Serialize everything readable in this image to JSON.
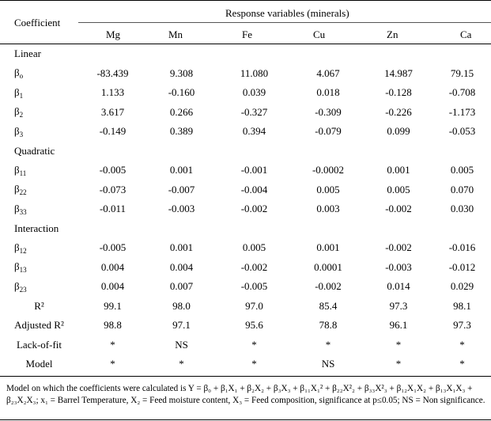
{
  "header": {
    "coefficient": "Coefficient",
    "response_title": "Response variables (minerals)",
    "columns": [
      "Mg",
      "Mn",
      "Fe",
      "Cu",
      "Zn",
      "Ca"
    ]
  },
  "rows": [
    {
      "kind": "section",
      "label": "Linear"
    },
    {
      "kind": "beta",
      "sym": "β",
      "sub": "o",
      "values": [
        "-83.439",
        "9.308",
        "11.080",
        "4.067",
        "14.987",
        "79.15"
      ]
    },
    {
      "kind": "beta",
      "sym": "β",
      "sub": "1",
      "values": [
        "1.133",
        "-0.160",
        "0.039",
        "0.018",
        "-0.128",
        "-0.708"
      ]
    },
    {
      "kind": "beta",
      "sym": "β",
      "sub": "2",
      "values": [
        "3.617",
        "0.266",
        "-0.327",
        "-0.309",
        "-0.226",
        "-1.173"
      ]
    },
    {
      "kind": "beta",
      "sym": "β",
      "sub": "3",
      "values": [
        "-0.149",
        "0.389",
        "0.394",
        "-0.079",
        "0.099",
        "-0.053"
      ]
    },
    {
      "kind": "section",
      "label": "Quadratic"
    },
    {
      "kind": "beta",
      "sym": "β",
      "sub": "11",
      "values": [
        "-0.005",
        "0.001",
        "-0.001",
        "-0.0002",
        "0.001",
        "0.005"
      ]
    },
    {
      "kind": "beta",
      "sym": "β",
      "sub": "22",
      "values": [
        "-0.073",
        "-0.007",
        "-0.004",
        "0.005",
        "0.005",
        "0.070"
      ]
    },
    {
      "kind": "beta",
      "sym": "β",
      "sub": "33",
      "values": [
        "-0.011",
        "-0.003",
        "-0.002",
        "0.003",
        "-0.002",
        "0.030"
      ]
    },
    {
      "kind": "section",
      "label": "Interaction"
    },
    {
      "kind": "beta",
      "sym": "β",
      "sub": "12",
      "values": [
        "-0.005",
        "0.001",
        "0.005",
        "0.001",
        "-0.002",
        "-0.016"
      ]
    },
    {
      "kind": "beta",
      "sym": "β",
      "sub": "13",
      "values": [
        "0.004",
        "0.004",
        "-0.002",
        "0.0001",
        "-0.003",
        "-0.012"
      ]
    },
    {
      "kind": "beta",
      "sym": "β",
      "sub": "23",
      "values": [
        "0.004",
        "0.007",
        "-0.005",
        "-0.002",
        "0.014",
        "0.029"
      ]
    },
    {
      "kind": "stat",
      "label": "R²",
      "values": [
        "99.1",
        "98.0",
        "97.0",
        "85.4",
        "97.3",
        "98.1"
      ]
    },
    {
      "kind": "stat",
      "label": "Adjusted R²",
      "values": [
        "98.8",
        "97.1",
        "95.6",
        "78.8",
        "96.1",
        "97.3"
      ]
    },
    {
      "kind": "stat",
      "label": "Lack-of-fit",
      "values": [
        "*",
        "NS",
        "*",
        "*",
        "*",
        "*"
      ]
    },
    {
      "kind": "stat",
      "label": "Model",
      "values": [
        "*",
        "*",
        "*",
        "NS",
        "*",
        "*"
      ]
    }
  ],
  "footnote": {
    "intro": "Model on which the coefficients were calculated is ",
    "equation": "Y = β₀ + β₁X₁ + β₂X₂ + β₃X₃ + β₁₁X₁² + β₂₂X²₂ + β₃₃X²₃ + β₁₂X₁X₂ + β₁₃X₁X₃ + β₂₃X₂X₃",
    "definitions": "; x₁ = Barrel Temperature, X₂ = Feed moisture content, X₃ = Feed composition, significance at p≤0.05;  NS = Non significance."
  }
}
